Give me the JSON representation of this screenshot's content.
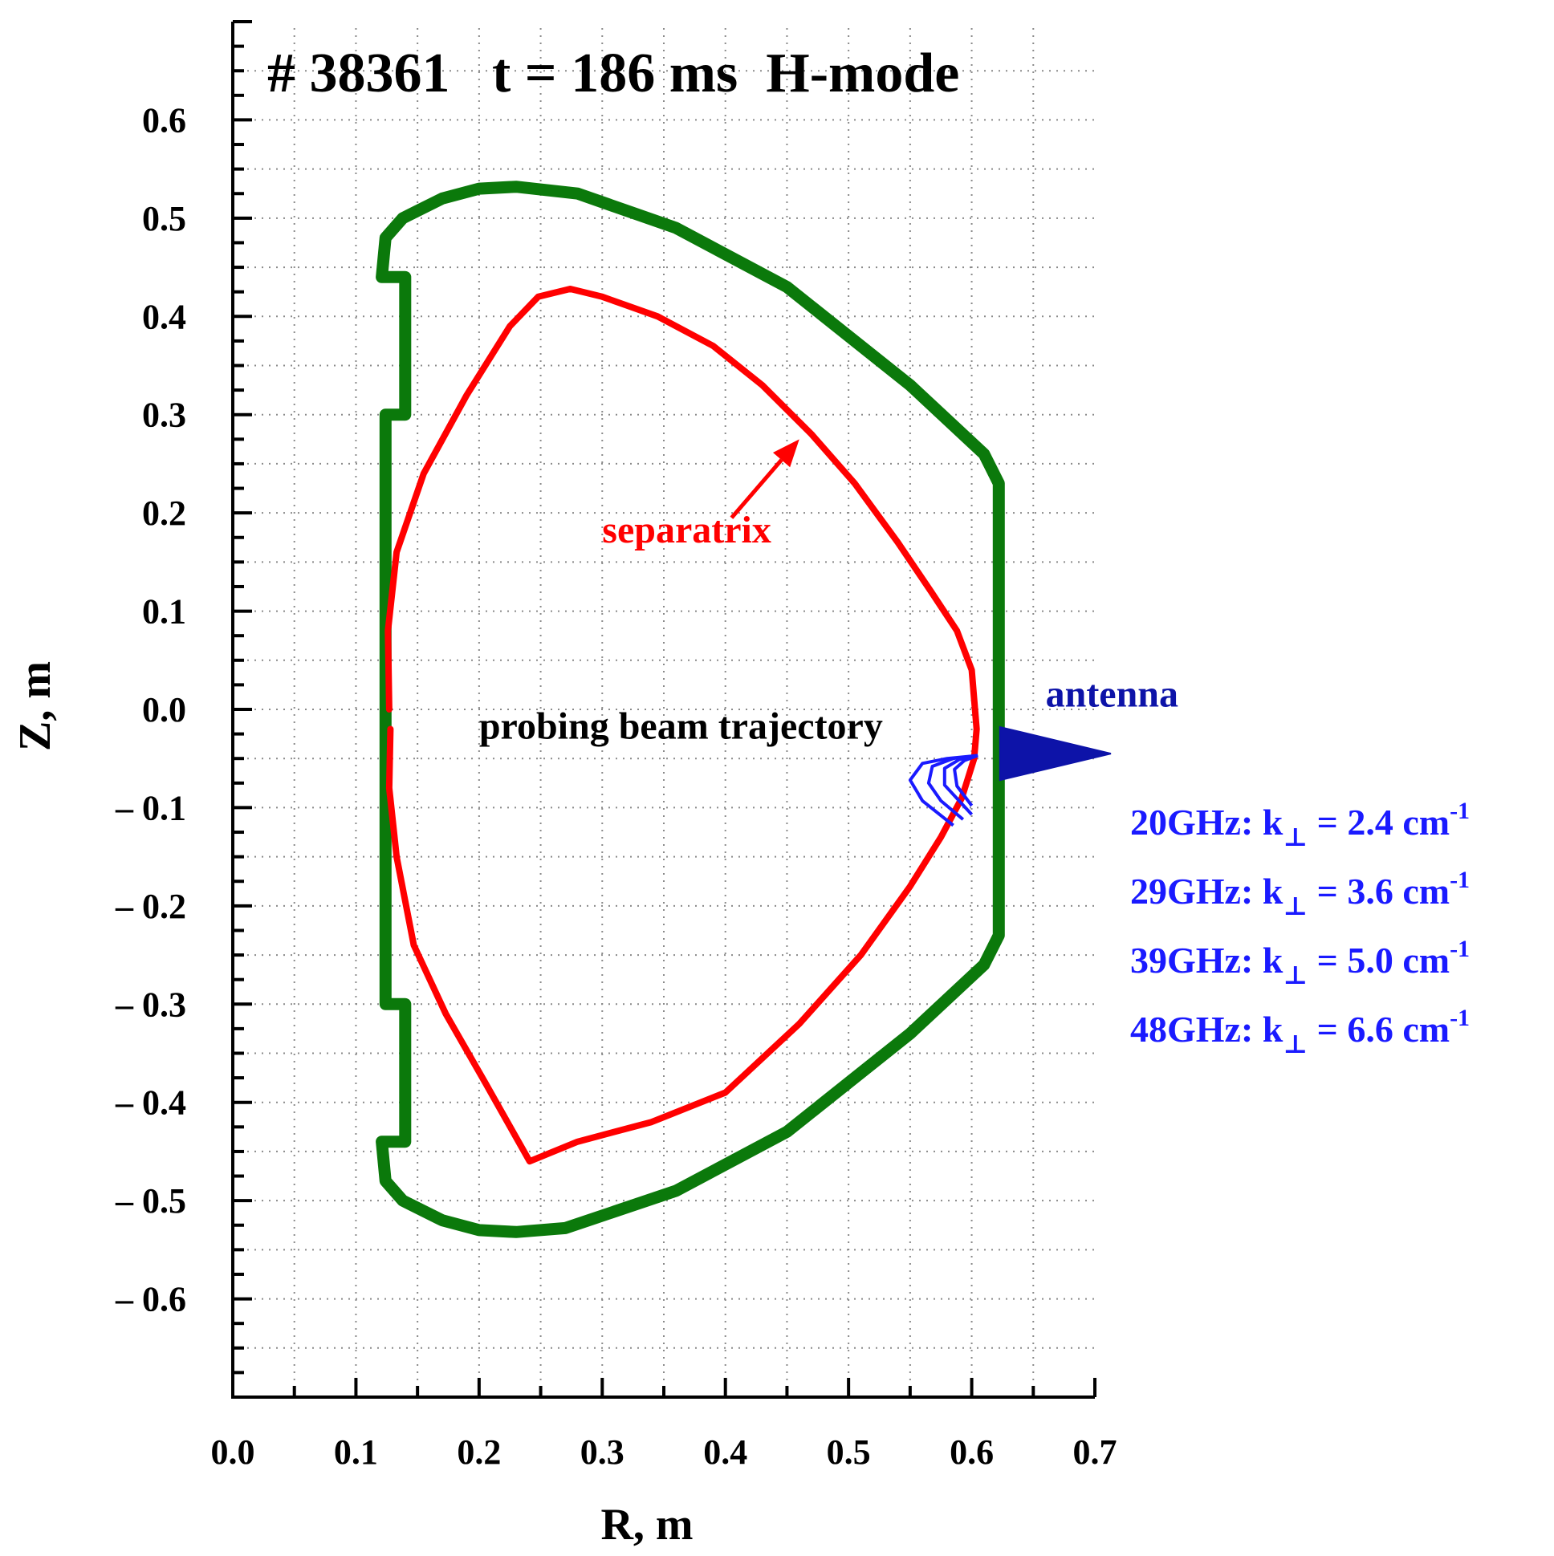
{
  "chart_data": {
    "type": "line",
    "title": "# 38361   t = 186 ms  H-mode",
    "xlabel": "R, m",
    "ylabel": "Z, m",
    "xlim": [
      0.0,
      0.7
    ],
    "ylim": [
      -0.7,
      0.7
    ],
    "grid": true,
    "x_ticks": [
      0.0,
      0.1,
      0.2,
      0.3,
      0.4,
      0.5,
      0.6,
      0.7
    ],
    "x_tick_labels": [
      "0.0",
      "0.1",
      "0.2",
      "0.3",
      "0.4",
      "0.5",
      "0.6",
      "0.7"
    ],
    "y_ticks": [
      0.6,
      0.5,
      0.4,
      0.3,
      0.2,
      0.1,
      0.0,
      -0.1,
      -0.2,
      -0.3,
      -0.4,
      -0.5,
      -0.6
    ],
    "y_tick_labels": [
      "0.6",
      "0.5",
      "0.4",
      "0.3",
      "0.2",
      "0.1",
      "0.0",
      "– 0.1",
      "– 0.2",
      "– 0.3",
      "– 0.4",
      "– 0.5",
      "– 0.6"
    ],
    "series": [
      {
        "name": "vessel",
        "color": "#0b790b",
        "x": [
          0.121,
          0.14,
          0.14,
          0.124,
          0.124,
          0.14,
          0.14,
          0.121,
          0.124,
          0.138,
          0.17,
          0.2,
          0.23,
          0.27,
          0.36,
          0.45,
          0.55,
          0.61,
          0.622,
          0.622,
          0.61,
          0.55,
          0.45,
          0.36,
          0.28,
          0.23,
          0.2,
          0.17,
          0.138,
          0.124,
          0.121
        ],
        "y": [
          0.44,
          0.44,
          0.3,
          0.3,
          -0.3,
          -0.3,
          -0.44,
          -0.44,
          -0.48,
          -0.5,
          -0.52,
          -0.53,
          -0.532,
          -0.528,
          -0.49,
          -0.43,
          -0.33,
          -0.26,
          -0.23,
          0.23,
          0.26,
          0.33,
          0.43,
          0.49,
          0.525,
          0.532,
          0.53,
          0.52,
          0.5,
          0.48,
          0.44
        ]
      },
      {
        "name": "separatrix",
        "color": "#ff0000",
        "x": [
          0.127,
          0.126,
          0.133,
          0.155,
          0.19,
          0.225,
          0.248,
          0.274,
          0.3,
          0.345,
          0.39,
          0.43,
          0.47,
          0.505,
          0.54,
          0.567,
          0.588,
          0.6,
          0.604,
          0.602,
          0.592,
          0.575,
          0.55,
          0.51,
          0.46,
          0.4,
          0.34,
          0.28,
          0.241,
          0.205,
          0.173,
          0.147,
          0.133,
          0.127,
          0.128
        ],
        "y": [
          0.0,
          0.08,
          0.16,
          0.24,
          0.32,
          0.39,
          0.42,
          0.428,
          0.42,
          0.4,
          0.37,
          0.33,
          0.28,
          0.23,
          0.17,
          0.12,
          0.08,
          0.04,
          -0.02,
          -0.05,
          -0.09,
          -0.13,
          -0.18,
          -0.25,
          -0.32,
          -0.39,
          -0.42,
          -0.44,
          -0.46,
          -0.38,
          -0.31,
          -0.24,
          -0.15,
          -0.08,
          -0.02
        ]
      }
    ],
    "beams": [
      {
        "x": [
          0.605,
          0.58,
          0.56,
          0.55,
          0.56,
          0.585
        ],
        "y": [
          -0.047,
          -0.05,
          -0.055,
          -0.072,
          -0.093,
          -0.118
        ]
      },
      {
        "x": [
          0.605,
          0.585,
          0.568,
          0.565,
          0.575,
          0.593
        ],
        "y": [
          -0.047,
          -0.05,
          -0.058,
          -0.075,
          -0.093,
          -0.112
        ]
      },
      {
        "x": [
          0.605,
          0.59,
          0.578,
          0.578,
          0.589,
          0.6
        ],
        "y": [
          -0.047,
          -0.051,
          -0.06,
          -0.077,
          -0.092,
          -0.107
        ]
      },
      {
        "x": [
          0.605,
          0.594,
          0.586,
          0.588,
          0.6
        ],
        "y": [
          -0.047,
          -0.052,
          -0.061,
          -0.078,
          -0.098
        ]
      }
    ],
    "antenna": {
      "x": [
        0.623,
        0.713,
        0.623
      ],
      "y": [
        -0.018,
        -0.045,
        -0.072
      ],
      "color": "#0d13a8"
    },
    "annotations": [
      {
        "name": "separatrix-label",
        "text": "separatrix",
        "x": 0.3,
        "y": 0.17,
        "color": "#ff0000",
        "arrow_from": [
          0.405,
          0.195
        ],
        "arrow_to": [
          0.46,
          0.275
        ]
      },
      {
        "name": "beam-label",
        "text": "probing beam trajectory",
        "x": 0.2,
        "y": -0.03,
        "color": "#000000"
      },
      {
        "name": "antenna-label",
        "text": "antenna",
        "x": 0.66,
        "y": 0.003,
        "color": "#0d13a8"
      }
    ],
    "k_perp_annotations": [
      {
        "prefix": "20GHz: k",
        "value": " = 2.4 cm",
        "sup": "-1"
      },
      {
        "prefix": "29GHz: k",
        "value": " = 3.6 cm",
        "sup": "-1"
      },
      {
        "prefix": "39GHz: k",
        "value": " = 5.0 cm",
        "sup": "-1"
      },
      {
        "prefix": "48GHz: k",
        "value": " = 6.6 cm",
        "sup": "-1"
      }
    ],
    "k_perp_subscript": "⊥",
    "k_perp_color": "#1a1aff"
  }
}
